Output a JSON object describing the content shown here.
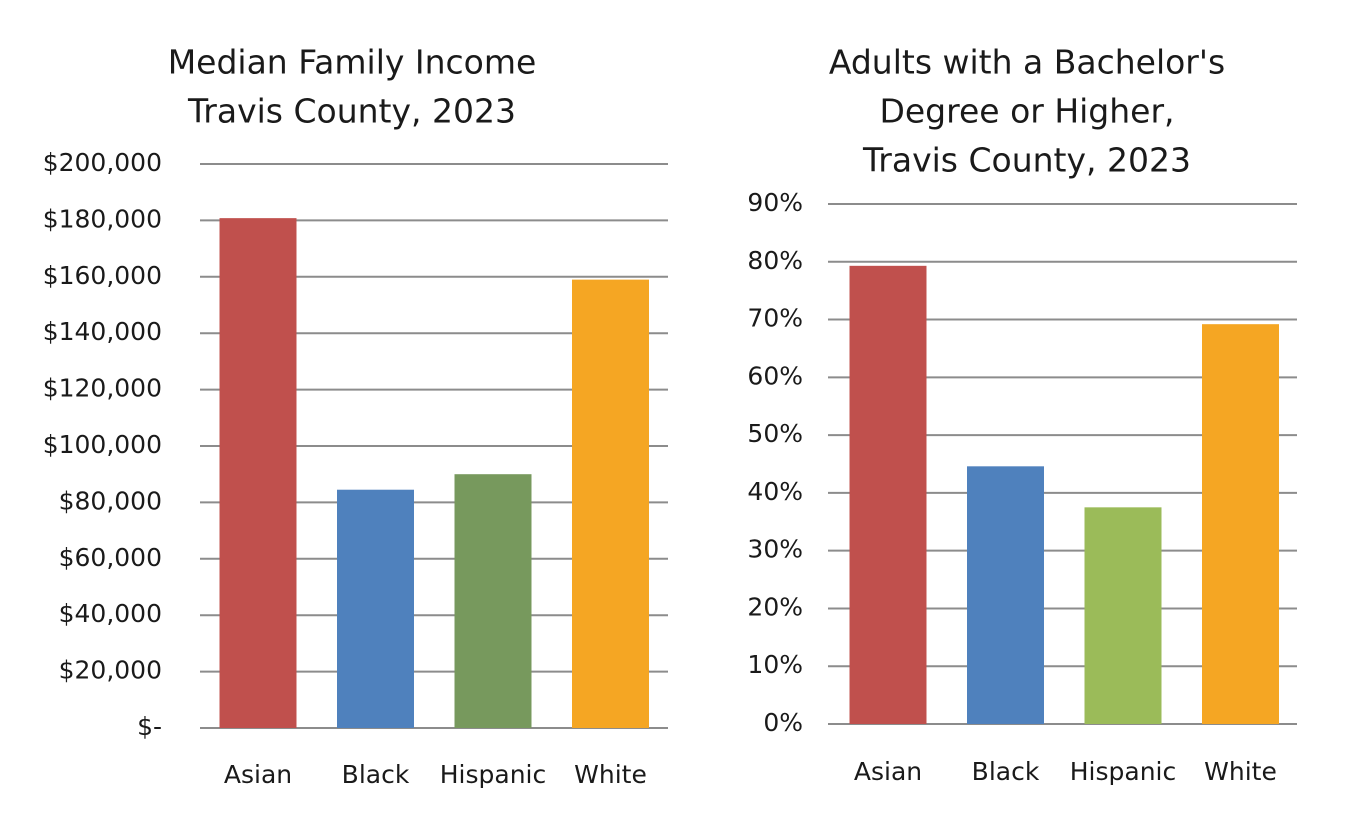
{
  "chart_data": [
    {
      "type": "bar",
      "title": [
        "Median Family Income",
        "Travis County, 2023"
      ],
      "xlabel": "",
      "ylabel": "",
      "categories": [
        "Asian",
        "Black",
        "Hispanic",
        "White"
      ],
      "values": [
        180800,
        84500,
        90000,
        159000
      ],
      "colors": [
        "#C0504D",
        "#4F81BD",
        "#77995D",
        "#F5A623"
      ],
      "ylim": [
        0,
        200000
      ],
      "yticks": [
        0,
        20000,
        40000,
        60000,
        80000,
        100000,
        120000,
        140000,
        160000,
        180000,
        200000
      ],
      "ytick_labels": [
        "$-",
        "$20,000",
        "$40,000",
        "$60,000",
        "$80,000",
        "$100,000",
        "$120,000",
        "$140,000",
        "$160,000",
        "$180,000",
        "$200,000"
      ],
      "grid": true,
      "legend": "none"
    },
    {
      "type": "bar",
      "title": [
        "Adults with a Bachelor's",
        "Degree or Higher,",
        "Travis County, 2023"
      ],
      "xlabel": "",
      "ylabel": "",
      "categories": [
        "Asian",
        "Black",
        "Hispanic",
        "White"
      ],
      "values": [
        79.3,
        44.6,
        37.5,
        69.2
      ],
      "colors": [
        "#C0504D",
        "#4F81BD",
        "#9BBB59",
        "#F5A623"
      ],
      "ylim": [
        0,
        90
      ],
      "yticks": [
        0,
        10,
        20,
        30,
        40,
        50,
        60,
        70,
        80,
        90
      ],
      "ytick_labels": [
        "0%",
        "10%",
        "20%",
        "30%",
        "40%",
        "50%",
        "60%",
        "70%",
        "80%",
        "90%"
      ],
      "grid": true,
      "legend": "none"
    }
  ]
}
